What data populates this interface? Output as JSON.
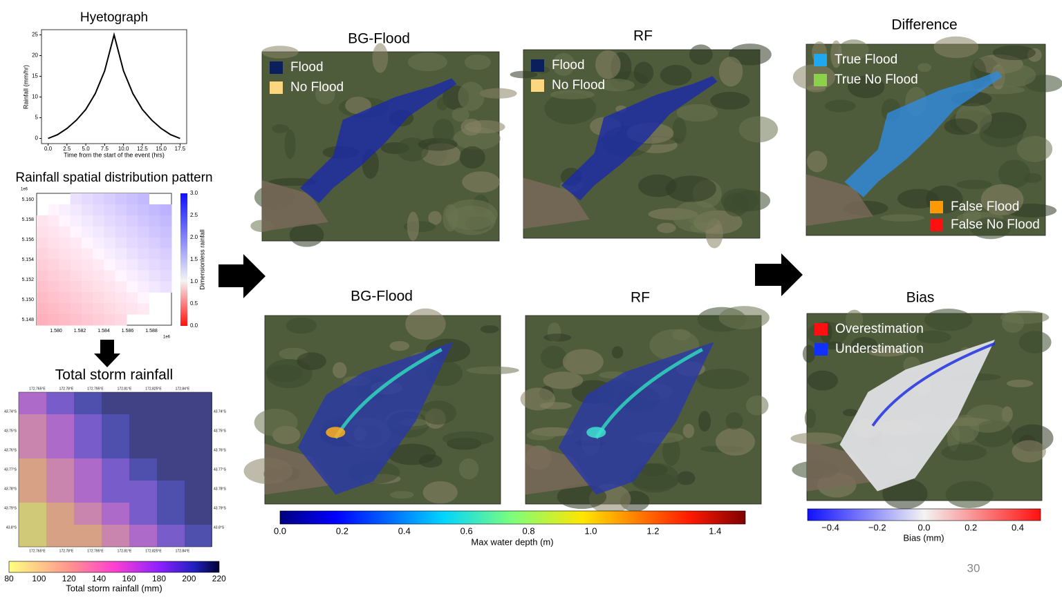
{
  "chart_data": [
    {
      "type": "line",
      "title": "Hyetograph",
      "x_label": "Time from the start of the event (hrs)",
      "y_label": "Rainfall (mm/hr)",
      "x": [
        0,
        1.25,
        2.5,
        3.75,
        5,
        6.25,
        7.5,
        8.75,
        10,
        11.25,
        12.5,
        13.75,
        15,
        16.25,
        17.5
      ],
      "values": [
        0,
        0.9,
        2.4,
        4.4,
        7,
        10.8,
        16.3,
        25,
        16.3,
        10.8,
        7,
        4.4,
        2.4,
        0.9,
        0
      ],
      "color": "#000000",
      "xlim": [
        -0.875,
        18.375
      ],
      "ylim": [
        -1.25,
        26.25
      ],
      "xticks": [
        {
          "value": 0,
          "label": "0.0"
        },
        {
          "value": 2.5,
          "label": "2.5"
        },
        {
          "value": 5,
          "label": "5.0"
        },
        {
          "value": 7.5,
          "label": "7.5"
        },
        {
          "value": 10,
          "label": "10.0"
        },
        {
          "value": 12.5,
          "label": "12.5"
        },
        {
          "value": 15,
          "label": "15.0"
        },
        {
          "value": 17.5,
          "label": "17.5"
        }
      ],
      "yticks": [
        0,
        5,
        10,
        15,
        20,
        25
      ]
    }
  ],
  "rainfall_pattern": {
    "title": "Rainfall spatial distribution pattern",
    "yticks": [
      "5.160",
      "5.158",
      "5.156",
      "5.154",
      "5.152",
      "5.150",
      "5.148"
    ],
    "xticks": [
      "1.580",
      "1.582",
      "1.584",
      "1.586",
      "1.588"
    ],
    "y_offset": "1e6",
    "x_offset": "1e6",
    "colorbar_ticks": [
      "3.0",
      "2.5",
      "2.0",
      "1.5",
      "1.0",
      "0.5",
      "0.0"
    ],
    "colorbar_label": "Dimensionless rainfall"
  },
  "storm": {
    "title": "Total storm rainfall",
    "lon_labels": [
      "172.765°E",
      "172.78°E",
      "172.795°E",
      "172.81°E",
      "172.825°E",
      "172.84°E"
    ],
    "lat_labels": [
      "43.74°S",
      "43.75°S",
      "43.76°S",
      "43.77°S",
      "43.78°S",
      "43.79°S",
      "43.8°S"
    ],
    "colorbar_ticks": [
      "80",
      "100",
      "120",
      "140",
      "160",
      "180",
      "200",
      "220"
    ],
    "colorbar_label": "Total storm rainfall (mm)"
  },
  "panels": [
    {
      "title": "BG-Flood",
      "legend": [
        {
          "label": "Flood",
          "color": "#0b1f5c"
        },
        {
          "label": "No Flood",
          "color": "#fdd77f"
        }
      ]
    },
    {
      "title": "RF",
      "legend": [
        {
          "label": "Flood",
          "color": "#0b1f5c"
        },
        {
          "label": "No Flood",
          "color": "#fdd77f"
        }
      ]
    },
    {
      "title": "Difference",
      "legend": [
        {
          "label": "True Flood",
          "color": "#1fa7f0"
        },
        {
          "label": "True No Flood",
          "color": "#8bd14a"
        },
        {
          "label": "False Flood",
          "color": "#ff9900"
        },
        {
          "label": "False No Flood",
          "color": "#ff1010"
        }
      ]
    },
    {
      "title": "BG-Flood",
      "legend": []
    },
    {
      "title": "RF",
      "legend": []
    },
    {
      "title": "Bias",
      "legend": [
        {
          "label": "Overestimation",
          "color": "#ff1010"
        },
        {
          "label": "Understimation",
          "color": "#1030ff"
        }
      ]
    }
  ],
  "depth_colorbar": {
    "ticks": [
      "0.0",
      "0.2",
      "0.4",
      "0.6",
      "0.8",
      "1.0",
      "1.2",
      "1.4"
    ],
    "label": "Max water depth (m)"
  },
  "bias_colorbar": {
    "ticks": [
      "−0.4",
      "−0.2",
      "0.0",
      "0.2",
      "0.4"
    ],
    "label": "Bias (mm)"
  },
  "page_number": "30"
}
